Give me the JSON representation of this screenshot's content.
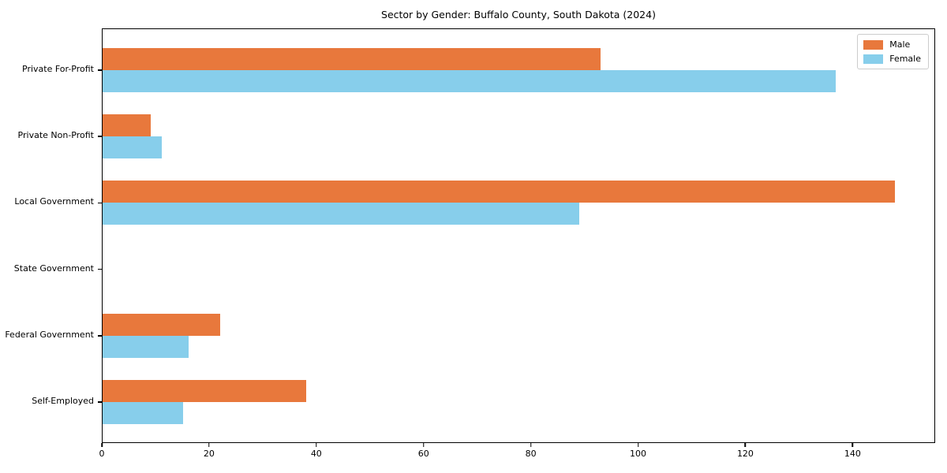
{
  "title": "Sector by Gender: Buffalo County, South Dakota (2024)",
  "colors": {
    "male": "#e8783c",
    "female": "#87ceeb",
    "axis": "#000000",
    "background": "#ffffff",
    "legend_border": "#cccccc"
  },
  "legend": {
    "position": "upper right",
    "items": [
      {
        "label": "Male",
        "color": "#e8783c"
      },
      {
        "label": "Female",
        "color": "#87ceeb"
      }
    ]
  },
  "chart_data": {
    "type": "bar",
    "orientation": "horizontal",
    "title": "Sector by Gender: Buffalo County, South Dakota (2024)",
    "categories": [
      "Private For-Profit",
      "Private Non-Profit",
      "Local Government",
      "State Government",
      "Federal Government",
      "Self-Employed"
    ],
    "series": [
      {
        "name": "Male",
        "color": "#e8783c",
        "values": [
          93,
          9,
          148,
          0,
          22,
          38
        ]
      },
      {
        "name": "Female",
        "color": "#87ceeb",
        "values": [
          137,
          11,
          89,
          0,
          16,
          15
        ]
      }
    ],
    "xlabel": "",
    "ylabel": "",
    "xlim": [
      0,
      155.4
    ],
    "x_ticks": [
      0,
      20,
      40,
      60,
      80,
      100,
      120,
      140
    ],
    "grid": false,
    "legend_position": "upper right"
  }
}
